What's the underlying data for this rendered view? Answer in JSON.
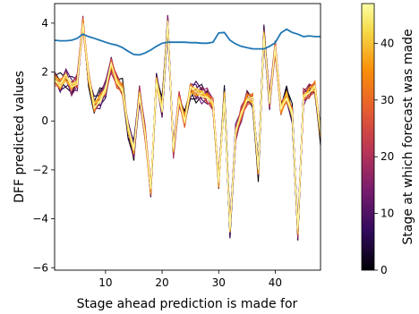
{
  "chart_data": {
    "type": "line",
    "xlabel": "Stage ahead prediction is made for",
    "ylabel": "DFF predicted values",
    "xlim": [
      1,
      48
    ],
    "ylim": [
      -6.1,
      4.8
    ],
    "x_ticks": [
      10,
      20,
      30,
      40
    ],
    "y_ticks": [
      -6,
      -4,
      -2,
      0,
      2,
      4
    ],
    "colorbar": {
      "label": "Stage at which forecast was made",
      "range": [
        0,
        47
      ],
      "ticks": [
        0,
        10,
        20,
        30,
        40
      ],
      "colormap": "inferno"
    },
    "reference_series": {
      "color": "#1f77b4",
      "x": [
        1,
        2,
        3,
        4,
        5,
        6,
        7,
        8,
        9,
        10,
        11,
        12,
        13,
        14,
        15,
        16,
        17,
        18,
        19,
        20,
        21,
        22,
        23,
        24,
        25,
        26,
        27,
        28,
        29,
        30,
        31,
        32,
        33,
        34,
        35,
        36,
        37,
        38,
        39,
        40,
        41,
        42,
        43,
        44,
        45,
        46,
        47,
        48
      ],
      "values": [
        3.3,
        3.28,
        3.28,
        3.3,
        3.38,
        3.55,
        3.45,
        3.38,
        3.3,
        3.22,
        3.15,
        3.1,
        3.0,
        2.85,
        2.72,
        2.7,
        2.78,
        2.9,
        3.05,
        3.18,
        3.22,
        3.22,
        3.22,
        3.22,
        3.2,
        3.2,
        3.18,
        3.18,
        3.22,
        3.6,
        3.62,
        3.3,
        3.15,
        3.05,
        3.0,
        2.95,
        2.95,
        2.95,
        3.05,
        3.2,
        3.6,
        3.75,
        3.62,
        3.55,
        3.45,
        3.48,
        3.45,
        3.45
      ]
    },
    "forecast_base": {
      "x": [
        1,
        2,
        3,
        4,
        5,
        6,
        7,
        8,
        9,
        10,
        11,
        12,
        13,
        14,
        15,
        16,
        17,
        18,
        19,
        20,
        21,
        22,
        23,
        24,
        25,
        26,
        27,
        28,
        29,
        30,
        31,
        32,
        33,
        34,
        35,
        36,
        37,
        38,
        39,
        40,
        41,
        42,
        43,
        44,
        45,
        46,
        47,
        48
      ],
      "values": [
        1.7,
        1.5,
        1.8,
        1.4,
        1.6,
        4.0,
        1.8,
        0.6,
        0.9,
        1.3,
        2.3,
        1.6,
        1.3,
        -0.3,
        -1.2,
        1.1,
        -0.5,
        -2.8,
        1.6,
        0.5,
        4.0,
        -1.2,
        0.9,
        0.0,
        1.3,
        1.2,
        1.1,
        1.0,
        0.7,
        -2.5,
        1.0,
        -4.4,
        -0.5,
        0.3,
        0.9,
        0.9,
        -2.0,
        3.5,
        0.8,
        3.0,
        0.5,
        1.0,
        0.3,
        -4.5,
        1.0,
        1.2,
        1.4,
        -0.5
      ]
    }
  }
}
